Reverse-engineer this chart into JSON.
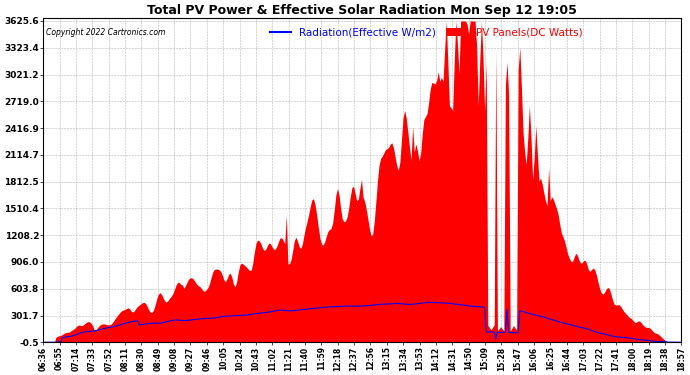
{
  "title": "Total PV Power & Effective Solar Radiation Mon Sep 12 19:05",
  "copyright": "Copyright 2022 Cartronics.com",
  "legend_radiation": "Radiation(Effective W/m2)",
  "legend_pv": "PV Panels(DC Watts)",
  "yticks": [
    3625.6,
    3323.4,
    3021.2,
    2719.0,
    2416.9,
    2114.7,
    1812.5,
    1510.4,
    1208.2,
    906.0,
    603.8,
    301.7,
    -0.5
  ],
  "ymin": -0.5,
  "ymax": 3625.6,
  "background_color": "#ffffff",
  "title_color": "#000000",
  "radiation_color": "#0000ff",
  "pv_color": "#ff0000",
  "grid_color": "#888888",
  "copyright_color": "#000000",
  "n_points": 400,
  "figwidth": 6.9,
  "figheight": 3.75,
  "dpi": 100
}
